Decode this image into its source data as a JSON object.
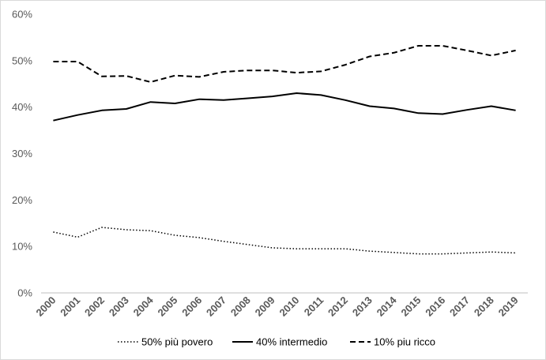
{
  "chart_data": {
    "type": "line",
    "title": "",
    "xlabel": "",
    "ylabel": "",
    "x": [
      "2000",
      "2001",
      "2002",
      "2003",
      "2004",
      "2005",
      "2006",
      "2007",
      "2008",
      "2009",
      "2010",
      "2011",
      "2012",
      "2013",
      "2014",
      "2015",
      "2016",
      "2017",
      "2018",
      "2019"
    ],
    "ylim": [
      0,
      60
    ],
    "yticks": [
      "0%",
      "10%",
      "20%",
      "30%",
      "40%",
      "50%",
      "60%"
    ],
    "grid": false,
    "legend_position": "bottom",
    "series": [
      {
        "name": "50% più povero",
        "style": "dotted",
        "color": "#000000",
        "values": [
          13.1,
          12.0,
          14.1,
          13.6,
          13.4,
          12.4,
          11.9,
          11.1,
          10.4,
          9.7,
          9.5,
          9.5,
          9.5,
          9.0,
          8.7,
          8.4,
          8.4,
          8.6,
          8.8,
          8.6
        ]
      },
      {
        "name": "40% intermedio",
        "style": "solid",
        "color": "#000000",
        "values": [
          37.1,
          38.3,
          39.3,
          39.6,
          41.1,
          40.8,
          41.7,
          41.5,
          41.9,
          42.3,
          43.0,
          42.6,
          41.5,
          40.2,
          39.7,
          38.7,
          38.5,
          39.4,
          40.2,
          39.3
        ]
      },
      {
        "name": "10% piu ricco",
        "style": "dashed",
        "color": "#000000",
        "values": [
          49.8,
          49.8,
          46.6,
          46.7,
          45.4,
          46.8,
          46.5,
          47.6,
          47.9,
          47.9,
          47.4,
          47.7,
          49.1,
          50.9,
          51.7,
          53.2,
          53.2,
          52.2,
          51.1,
          52.2
        ]
      }
    ]
  }
}
